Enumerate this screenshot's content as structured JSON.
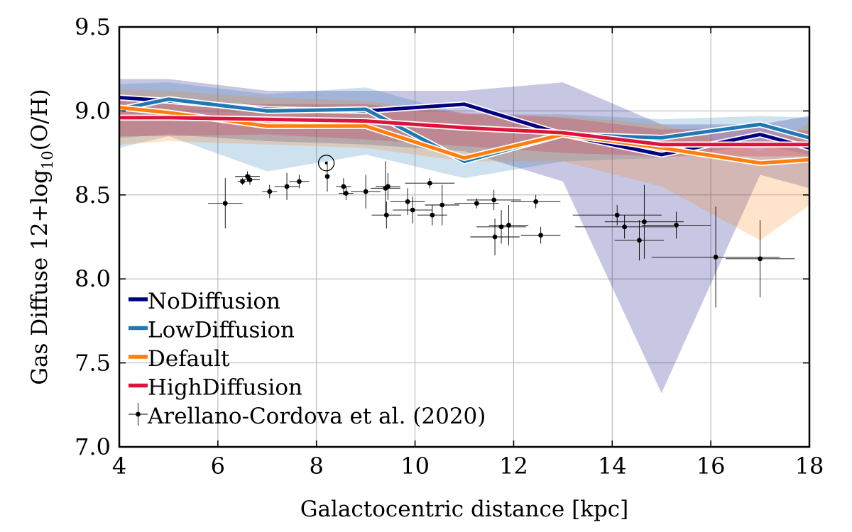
{
  "chart_data": {
    "type": "line",
    "xlabel": "Galactocentric distance [kpc]",
    "ylabel_main": "Gas Diffuse 12+log",
    "ylabel_sub": "10",
    "ylabel_tail": "(O/H)",
    "xlim": [
      4,
      18
    ],
    "ylim": [
      7.0,
      9.5
    ],
    "xticks": [
      "4",
      "6",
      "8",
      "10",
      "12",
      "14",
      "16",
      "18"
    ],
    "yticks": [
      "7.0",
      "7.5",
      "8.0",
      "8.5",
      "9.0",
      "9.5"
    ],
    "grid": true,
    "legend_position": "lower-left",
    "x": [
      4,
      5,
      7,
      9,
      11,
      13,
      15,
      17,
      18
    ],
    "series": [
      {
        "name": "NoDiffusion",
        "color": "#000080",
        "values": [
          9.08,
          9.06,
          9.01,
          9.0,
          9.04,
          8.86,
          8.74,
          8.86,
          8.78
        ],
        "band_low": [
          8.84,
          8.86,
          8.82,
          8.8,
          8.76,
          8.58,
          7.32,
          8.62,
          8.54
        ],
        "band_high": [
          9.19,
          9.19,
          9.12,
          9.12,
          9.12,
          9.17,
          8.92,
          8.92,
          8.97
        ]
      },
      {
        "name": "LowDiffusion",
        "color": "#1f77b4",
        "values": [
          9.01,
          9.07,
          9.0,
          9.01,
          8.7,
          8.86,
          8.84,
          8.92,
          8.84
        ],
        "band_low": [
          8.78,
          8.85,
          8.64,
          8.74,
          8.6,
          8.7,
          8.72,
          8.8,
          8.74
        ],
        "band_high": [
          9.16,
          9.17,
          9.1,
          9.14,
          8.98,
          8.98,
          8.95,
          8.97,
          8.96
        ]
      },
      {
        "name": "Default",
        "color": "#ff7f0e",
        "values": [
          9.02,
          8.99,
          8.91,
          8.91,
          8.72,
          8.86,
          8.78,
          8.69,
          8.71
        ],
        "band_low": [
          8.8,
          8.82,
          8.8,
          8.78,
          8.7,
          8.7,
          8.55,
          8.23,
          8.44
        ],
        "band_high": [
          9.13,
          9.12,
          9.08,
          9.06,
          8.98,
          8.97,
          8.92,
          8.76,
          8.93
        ]
      },
      {
        "name": "HighDiffusion",
        "color": "#dc143c",
        "values": [
          8.96,
          8.96,
          8.95,
          8.94,
          8.9,
          8.87,
          8.8,
          8.8,
          8.8
        ],
        "band_low": [
          8.85,
          8.85,
          8.86,
          8.83,
          8.79,
          8.75,
          8.73,
          8.73,
          8.73
        ],
        "band_high": [
          9.06,
          9.05,
          9.04,
          9.04,
          8.99,
          8.96,
          8.89,
          8.9,
          8.88
        ]
      }
    ],
    "observations": {
      "name": "Arellano-Cordova et al. (2020)",
      "color": "#000000",
      "points": [
        {
          "x": 6.15,
          "y": 8.45,
          "xerr": 0.35,
          "yerr": 0.15
        },
        {
          "x": 6.5,
          "y": 8.58,
          "xerr": 0.1,
          "yerr": 0.02
        },
        {
          "x": 6.6,
          "y": 8.61,
          "xerr": 0.25,
          "yerr": 0.03
        },
        {
          "x": 6.65,
          "y": 8.59,
          "xerr": 0.2,
          "yerr": 0.03
        },
        {
          "x": 7.05,
          "y": 8.52,
          "xerr": 0.15,
          "yerr": 0.04
        },
        {
          "x": 7.4,
          "y": 8.55,
          "xerr": 0.25,
          "yerr": 0.08
        },
        {
          "x": 7.65,
          "y": 8.58,
          "xerr": 0.2,
          "yerr": 0.04
        },
        {
          "x": 8.22,
          "y": 8.61,
          "xerr": 0.0,
          "yerr": 0.09
        },
        {
          "x": 8.55,
          "y": 8.55,
          "xerr": 0.15,
          "yerr": 0.05
        },
        {
          "x": 8.6,
          "y": 8.51,
          "xerr": 0.15,
          "yerr": 0.04
        },
        {
          "x": 9.0,
          "y": 8.52,
          "xerr": 0.3,
          "yerr": 0.1
        },
        {
          "x": 9.4,
          "y": 8.54,
          "xerr": 0.3,
          "yerr": 0.16
        },
        {
          "x": 9.42,
          "y": 8.38,
          "xerr": 0.3,
          "yerr": 0.08
        },
        {
          "x": 9.45,
          "y": 8.55,
          "xerr": 0.25,
          "yerr": 0.08
        },
        {
          "x": 9.85,
          "y": 8.46,
          "xerr": 0.35,
          "yerr": 0.08
        },
        {
          "x": 9.95,
          "y": 8.41,
          "xerr": 0.4,
          "yerr": 0.08
        },
        {
          "x": 10.3,
          "y": 8.57,
          "xerr": 0.5,
          "yerr": 0.03
        },
        {
          "x": 10.35,
          "y": 8.38,
          "xerr": 0.3,
          "yerr": 0.06
        },
        {
          "x": 10.55,
          "y": 8.44,
          "xerr": 0.35,
          "yerr": 0.12
        },
        {
          "x": 11.25,
          "y": 8.45,
          "xerr": 0.45,
          "yerr": 0.03
        },
        {
          "x": 11.6,
          "y": 8.47,
          "xerr": 0.55,
          "yerr": 0.06
        },
        {
          "x": 11.62,
          "y": 8.25,
          "xerr": 0.5,
          "yerr": 0.11
        },
        {
          "x": 11.75,
          "y": 8.31,
          "xerr": 0.5,
          "yerr": 0.1
        },
        {
          "x": 11.9,
          "y": 8.32,
          "xerr": 0.4,
          "yerr": 0.12
        },
        {
          "x": 12.45,
          "y": 8.46,
          "xerr": 0.5,
          "yerr": 0.04
        },
        {
          "x": 12.55,
          "y": 8.26,
          "xerr": 0.4,
          "yerr": 0.05
        },
        {
          "x": 14.1,
          "y": 8.38,
          "xerr": 0.9,
          "yerr": 0.06
        },
        {
          "x": 14.25,
          "y": 8.31,
          "xerr": 1.0,
          "yerr": 0.07
        },
        {
          "x": 14.55,
          "y": 8.23,
          "xerr": 0.5,
          "yerr": 0.12
        },
        {
          "x": 14.65,
          "y": 8.34,
          "xerr": 0.8,
          "yerr": 0.22
        },
        {
          "x": 15.3,
          "y": 8.32,
          "xerr": 0.7,
          "yerr": 0.08
        },
        {
          "x": 16.1,
          "y": 8.13,
          "xerr": 1.3,
          "yerr": 0.3
        },
        {
          "x": 17.0,
          "y": 8.12,
          "xerr": 0.7,
          "yerr": 0.23
        }
      ],
      "sun": {
        "x": 8.2,
        "y": 8.69
      }
    }
  }
}
